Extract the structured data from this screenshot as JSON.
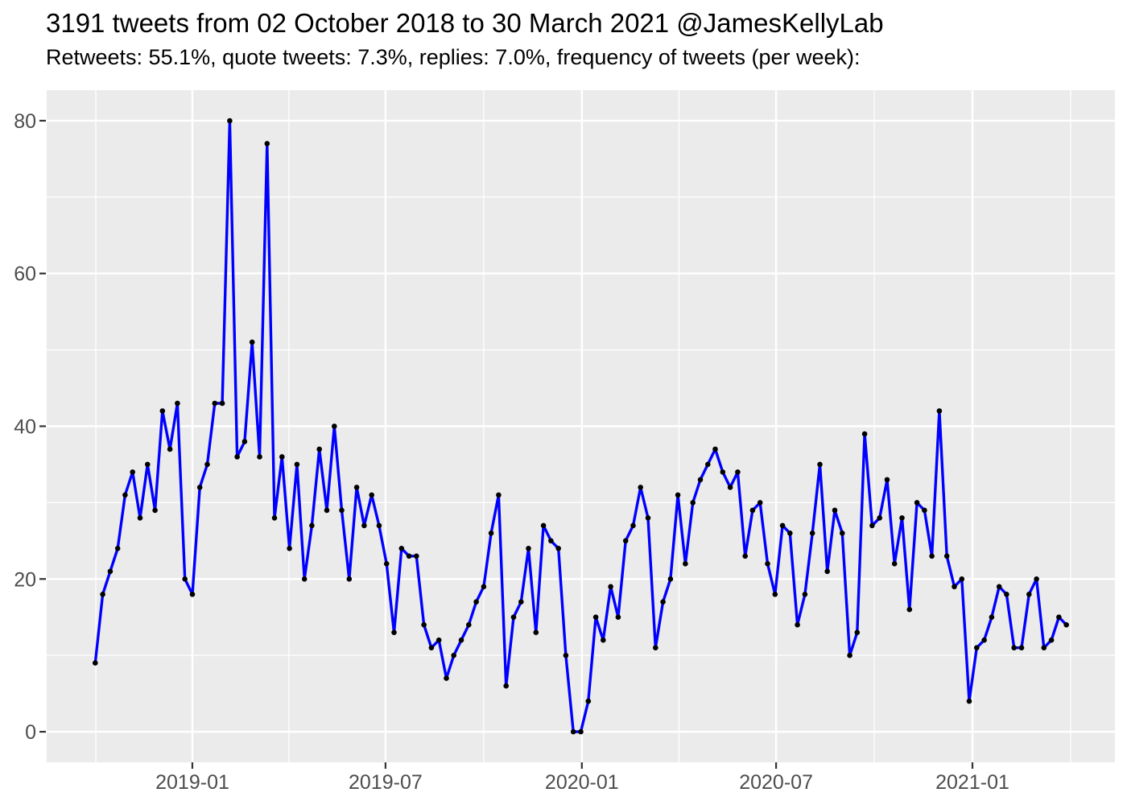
{
  "header": {
    "title": "3191 tweets from 02 October 2018 to 30 March 2021 @JamesKellyLab",
    "subtitle": "Retweets: 55.1%, quote tweets: 7.3%, replies: 7.0%, frequency of tweets (per week):"
  },
  "stats": {
    "total_tweets": 3191,
    "retweets_pct": "55.1%",
    "quote_tweets_pct": "7.3%",
    "replies_pct": "7.0%",
    "date_from": "02 October 2018",
    "date_to": "30 March 2021",
    "account": "@JamesKellyLab"
  },
  "chart_data": {
    "type": "line",
    "title": "frequency of tweets (per week)",
    "series_name": "tweets per week",
    "start_date": "2018-10-02",
    "interval_days": 7,
    "values": [
      9,
      18,
      21,
      24,
      31,
      34,
      28,
      35,
      29,
      42,
      37,
      43,
      20,
      18,
      32,
      35,
      43,
      43,
      80,
      36,
      38,
      51,
      36,
      77,
      28,
      36,
      24,
      35,
      20,
      27,
      37,
      29,
      40,
      29,
      20,
      32,
      27,
      31,
      27,
      22,
      13,
      24,
      23,
      23,
      14,
      11,
      12,
      7,
      10,
      12,
      14,
      17,
      19,
      26,
      31,
      6,
      15,
      17,
      24,
      13,
      27,
      25,
      24,
      10,
      0,
      0,
      4,
      15,
      12,
      19,
      15,
      25,
      27,
      32,
      28,
      11,
      17,
      20,
      31,
      22,
      30,
      33,
      35,
      37,
      34,
      32,
      34,
      23,
      29,
      30,
      22,
      18,
      27,
      26,
      14,
      18,
      26,
      35,
      21,
      29,
      26,
      10,
      13,
      39,
      27,
      28,
      33,
      22,
      28,
      16,
      30,
      29,
      23,
      42,
      23,
      19,
      20,
      4,
      11,
      12,
      15,
      19,
      18,
      11,
      11,
      18,
      20,
      11,
      12,
      15,
      14
    ],
    "xlabel": "",
    "ylabel": "",
    "ylim": [
      0,
      80
    ],
    "y_ticks": [
      0,
      20,
      40,
      60,
      80
    ],
    "y_minor_ticks": [
      10,
      30,
      50,
      70
    ],
    "x_ticks": [
      {
        "date": "2019-01-01",
        "label": "2019-01"
      },
      {
        "date": "2019-07-01",
        "label": "2019-07"
      },
      {
        "date": "2020-01-01",
        "label": "2020-01"
      },
      {
        "date": "2020-07-01",
        "label": "2020-07"
      },
      {
        "date": "2021-01-01",
        "label": "2021-01"
      }
    ],
    "grid": true,
    "legend": "none",
    "colors": {
      "line": "#0000FF",
      "point": "#000000",
      "panel_bg": "#EBEBEB",
      "gridline": "#FFFFFF",
      "axis_text": "#4D4D4D",
      "tick_mark": "#333333",
      "title_text": "#000000",
      "page_bg": "#FFFFFF"
    }
  }
}
